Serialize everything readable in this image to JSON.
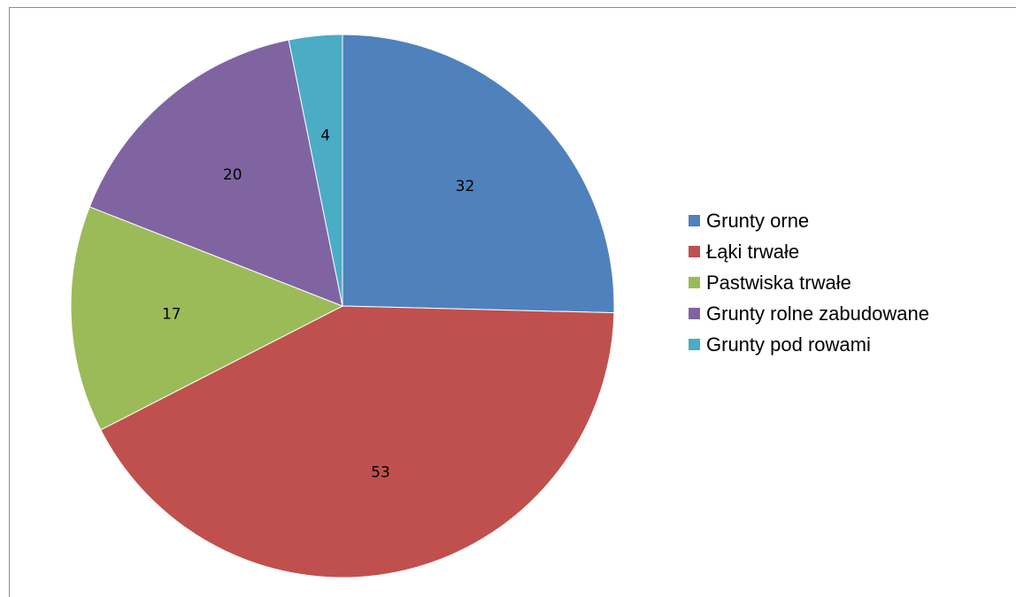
{
  "chart_data": {
    "type": "pie",
    "categories": [
      "Grunty orne",
      "Łąki trwałe",
      "Pastwiska trwałe",
      "Grunty rolne zabudowane",
      "Grunty pod rowami"
    ],
    "values": [
      32,
      53,
      17,
      20,
      4
    ],
    "data_labels": [
      "32",
      "53",
      "17",
      "20",
      "4"
    ],
    "colors": [
      "#4F81BD",
      "#C0504D",
      "#9BBB59",
      "#8064A2",
      "#4BACC6"
    ],
    "start_angle_deg": 0,
    "direction": "clockwise",
    "legend_position": "right",
    "title": ""
  }
}
